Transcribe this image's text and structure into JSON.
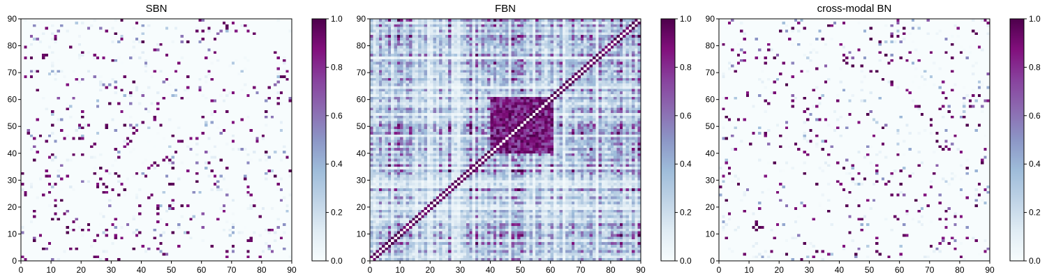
{
  "chart_data": [
    {
      "type": "heatmap",
      "title": "SBN",
      "grid_size": 90,
      "xlim": [
        0,
        90
      ],
      "ylim": [
        0,
        90
      ],
      "xticks": [
        "0",
        "10",
        "20",
        "30",
        "40",
        "50",
        "60",
        "70",
        "80",
        "90"
      ],
      "yticks": [
        "0",
        "10",
        "20",
        "30",
        "40",
        "50",
        "60",
        "70",
        "80",
        "90"
      ],
      "colorbar": {
        "range": [
          0.0,
          1.0
        ],
        "ticks": [
          "0.0",
          "0.2",
          "0.4",
          "0.6",
          "0.8",
          "1.0"
        ]
      },
      "pattern": "sparse",
      "grid": false
    },
    {
      "type": "heatmap",
      "title": "FBN",
      "grid_size": 90,
      "xlim": [
        0,
        90
      ],
      "ylim": [
        0,
        90
      ],
      "xticks": [
        "0",
        "10",
        "20",
        "30",
        "40",
        "50",
        "60",
        "70",
        "80",
        "90"
      ],
      "yticks": [
        "0",
        "10",
        "20",
        "30",
        "40",
        "50",
        "60",
        "70",
        "80",
        "90"
      ],
      "colorbar": {
        "range": [
          0.0,
          1.0
        ],
        "ticks": [
          "0.0",
          "0.2",
          "0.4",
          "0.6",
          "0.8",
          "1.0"
        ]
      },
      "pattern": "dense",
      "grid": false
    },
    {
      "type": "heatmap",
      "title": "cross-modal BN",
      "grid_size": 90,
      "xlim": [
        0,
        90
      ],
      "ylim": [
        0,
        90
      ],
      "xticks": [
        "0",
        "10",
        "20",
        "30",
        "40",
        "50",
        "60",
        "70",
        "80",
        "90"
      ],
      "yticks": [
        "0",
        "10",
        "20",
        "30",
        "40",
        "50",
        "60",
        "70",
        "80",
        "90"
      ],
      "colorbar": {
        "range": [
          0.0,
          1.0
        ],
        "ticks": [
          "0.0",
          "0.2",
          "0.4",
          "0.6",
          "0.8",
          "1.0"
        ]
      },
      "pattern": "sparse",
      "grid": false
    }
  ],
  "colormap": [
    "#f7fcfd",
    "#e0ecf4",
    "#bfd3e6",
    "#9ebcda",
    "#8c96c6",
    "#8c6bb1",
    "#88419d",
    "#810f7c",
    "#4d004b"
  ]
}
